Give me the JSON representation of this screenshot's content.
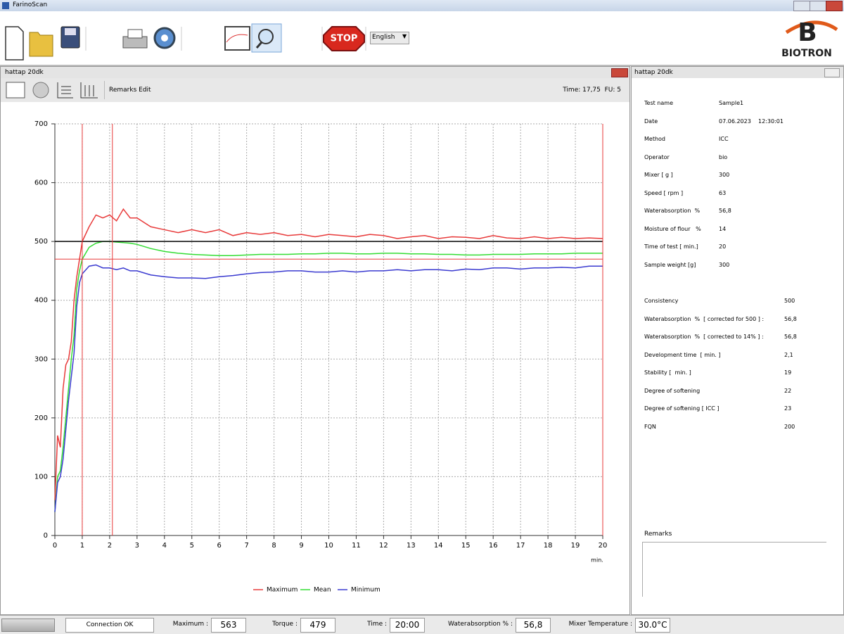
{
  "window": {
    "title": "FarinoScan"
  },
  "toolbar": {
    "stop": "STOP",
    "language": "English",
    "logo": "BIOTRON"
  },
  "chart_panel": {
    "title": "hattap 20dk",
    "remarks_edit": "Remarks Edit",
    "status": "Time: 17,75  FU: 5"
  },
  "chart_data": {
    "type": "line",
    "x_label": "min.",
    "x": [
      0,
      0.1,
      0.2,
      0.3,
      0.4,
      0.5,
      0.6,
      0.7,
      0.8,
      0.9,
      1,
      1.25,
      1.5,
      1.75,
      2,
      2.25,
      2.5,
      2.75,
      3,
      3.5,
      4,
      4.5,
      5,
      5.5,
      6,
      6.5,
      7,
      7.5,
      8,
      8.5,
      9,
      9.5,
      10,
      10.5,
      11,
      11.5,
      12,
      12.5,
      13,
      13.5,
      14,
      14.5,
      15,
      15.5,
      16,
      16.5,
      17,
      17.5,
      18,
      18.5,
      19,
      19.5,
      20
    ],
    "series": [
      {
        "name": "Maximum",
        "color": "#e83a3a",
        "values": [
          60,
          170,
          150,
          250,
          290,
          300,
          330,
          400,
          440,
          470,
          500,
          525,
          545,
          540,
          545,
          535,
          555,
          540,
          540,
          525,
          520,
          515,
          520,
          515,
          520,
          510,
          515,
          512,
          515,
          510,
          512,
          508,
          512,
          510,
          508,
          512,
          510,
          505,
          508,
          510,
          505,
          508,
          507,
          505,
          510,
          506,
          505,
          508,
          505,
          507,
          505,
          506,
          505
        ]
      },
      {
        "name": "Mean",
        "color": "#33dd33",
        "values": [
          40,
          100,
          110,
          150,
          200,
          250,
          300,
          340,
          420,
          450,
          470,
          490,
          497,
          500,
          500,
          499,
          498,
          497,
          495,
          488,
          483,
          480,
          478,
          477,
          476,
          476,
          477,
          478,
          478,
          478,
          479,
          479,
          480,
          480,
          479,
          479,
          480,
          480,
          479,
          479,
          478,
          478,
          477,
          477,
          478,
          478,
          478,
          479,
          479,
          479,
          480,
          480,
          480
        ]
      },
      {
        "name": "Minimum",
        "color": "#3a3ad0",
        "values": [
          40,
          90,
          100,
          130,
          180,
          230,
          270,
          310,
          390,
          430,
          445,
          458,
          460,
          455,
          455,
          452,
          455,
          450,
          450,
          443,
          440,
          438,
          438,
          437,
          440,
          442,
          445,
          447,
          448,
          450,
          450,
          448,
          448,
          450,
          448,
          450,
          450,
          452,
          450,
          452,
          452,
          450,
          453,
          452,
          455,
          455,
          453,
          455,
          455,
          456,
          455,
          458,
          458
        ]
      }
    ],
    "hlines": [
      {
        "value": 500,
        "color": "#000000"
      },
      {
        "value": 470,
        "color": "#e83a3a"
      }
    ],
    "vlines": [
      {
        "value": 1,
        "color": "#e83a3a"
      },
      {
        "value": 2.1,
        "color": "#e83a3a"
      },
      {
        "value": 20,
        "color": "#e83a3a"
      }
    ],
    "xlim": [
      0,
      20
    ],
    "ylim": [
      0,
      700
    ],
    "xticks": [
      0,
      1,
      2,
      3,
      4,
      5,
      6,
      7,
      8,
      9,
      10,
      11,
      12,
      13,
      14,
      15,
      16,
      17,
      18,
      19,
      20
    ],
    "yticks": [
      0,
      100,
      200,
      300,
      400,
      500,
      600,
      700
    ],
    "grid": true,
    "legend": "bottom"
  },
  "info_panel": {
    "title": "hattap 20dk",
    "test_info": [
      [
        "Test name",
        "Sample1"
      ],
      [
        "Date",
        "07.06.2023    12:30:01"
      ],
      [
        "Method",
        "ICC"
      ],
      [
        "Operator",
        "bio"
      ],
      [
        "Mixer [ g ]",
        "300"
      ],
      [
        "Speed [ rpm ]",
        "63"
      ],
      [
        "Waterabsorption  %",
        "56,8"
      ],
      [
        "Moisture of flour   %",
        "14"
      ],
      [
        "Time of test [ min.]",
        "20"
      ],
      [
        "Sample weight [g]",
        "300"
      ]
    ],
    "results": [
      [
        "Consistency",
        "500"
      ],
      [
        "Waterabsorption  %  [ corrected for 500 ] :",
        "56,8"
      ],
      [
        "Waterabsorption  %  [ corrected to 14% ] :",
        "56,8"
      ],
      [
        "Development time  [ min. ]",
        "2,1"
      ],
      [
        "Stability [  min. ]",
        "19"
      ],
      [
        "Degree of softening",
        "22"
      ],
      [
        "Degree of softening [ ICC ]",
        "23"
      ],
      [
        "FQN",
        "200"
      ]
    ],
    "remarks_label": "Remarks"
  },
  "status_bar": {
    "connection": "Connection OK",
    "fields": [
      {
        "label": "Maximum :",
        "value": "563"
      },
      {
        "label": "Torque :",
        "value": "479"
      },
      {
        "label": "Time :",
        "value": "20:00"
      },
      {
        "label": "Waterabsorption % :",
        "value": "56,8"
      },
      {
        "label": "Mixer Temperature :",
        "value": "30.0°C"
      }
    ]
  }
}
